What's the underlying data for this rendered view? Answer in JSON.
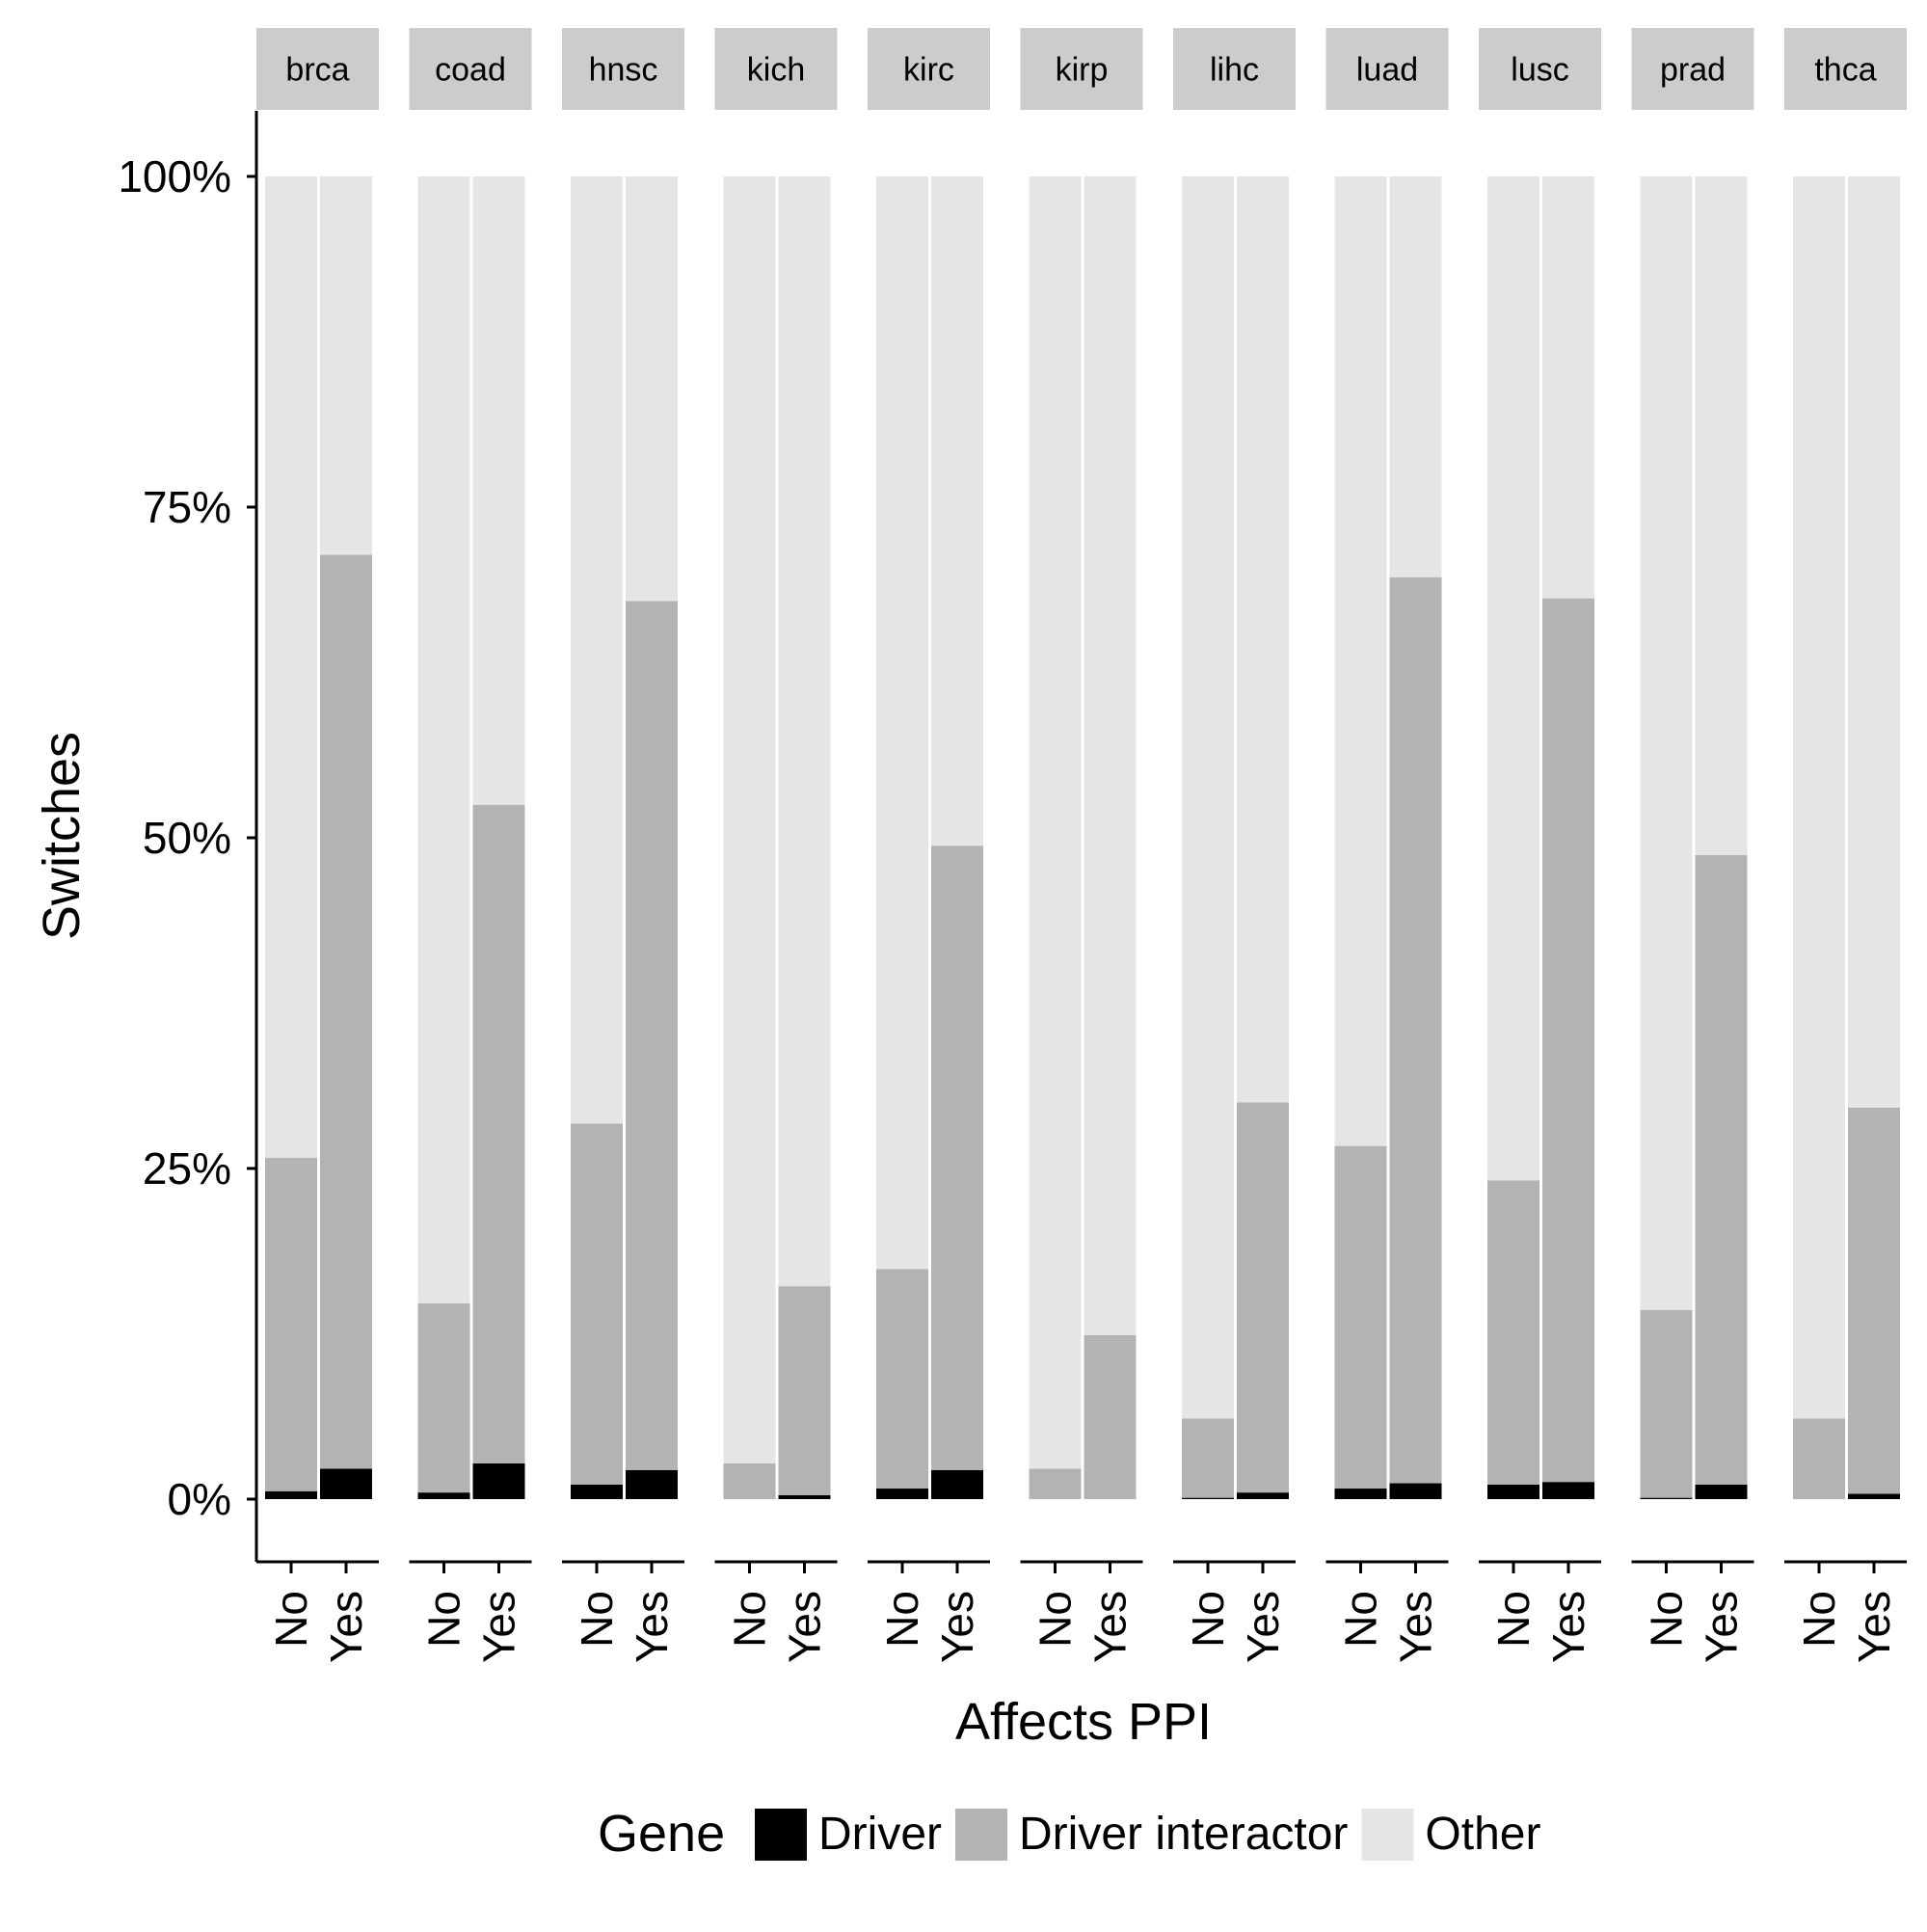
{
  "chart_data": {
    "type": "bar",
    "stacked": true,
    "normalized": true,
    "facets": [
      "brca",
      "coad",
      "hnsc",
      "kich",
      "kirc",
      "kirp",
      "lihc",
      "luad",
      "lusc",
      "prad",
      "thca"
    ],
    "categories": [
      "No",
      "Yes"
    ],
    "xlabel": "Affects PPI",
    "ylabel": "Switches",
    "ylim": [
      0,
      1
    ],
    "yticks": [
      0,
      0.25,
      0.5,
      0.75,
      1.0
    ],
    "ytick_labels": [
      "0%",
      "25%",
      "50%",
      "75%",
      "100%"
    ],
    "series": [
      {
        "name": "Driver",
        "color": "#000000",
        "values": [
          [
            0.006,
            0.023
          ],
          [
            0.005,
            0.027
          ],
          [
            0.011,
            0.022
          ],
          [
            0.0,
            0.003
          ],
          [
            0.008,
            0.022
          ],
          [
            0.0,
            0.0
          ],
          [
            0.001,
            0.005
          ],
          [
            0.008,
            0.012
          ],
          [
            0.011,
            0.013
          ],
          [
            0.001,
            0.011
          ],
          [
            0.0,
            0.004
          ]
        ]
      },
      {
        "name": "Driver interactor",
        "color": "#b3b3b3",
        "values": [
          [
            0.252,
            0.691
          ],
          [
            0.143,
            0.498
          ],
          [
            0.273,
            0.657
          ],
          [
            0.027,
            0.158
          ],
          [
            0.166,
            0.472
          ],
          [
            0.023,
            0.124
          ],
          [
            0.06,
            0.295
          ],
          [
            0.259,
            0.685
          ],
          [
            0.23,
            0.668
          ],
          [
            0.142,
            0.476
          ],
          [
            0.061,
            0.292
          ]
        ]
      },
      {
        "name": "Other",
        "color": "#e5e5e5",
        "values": [
          [
            0.742,
            0.286
          ],
          [
            0.852,
            0.475
          ],
          [
            0.716,
            0.321
          ],
          [
            0.973,
            0.839
          ],
          [
            0.826,
            0.506
          ],
          [
            0.977,
            0.876
          ],
          [
            0.939,
            0.7
          ],
          [
            0.733,
            0.303
          ],
          [
            0.759,
            0.319
          ],
          [
            0.857,
            0.513
          ],
          [
            0.939,
            0.704
          ]
        ]
      }
    ],
    "legend": {
      "title": "Gene",
      "position": "bottom",
      "items": [
        "Driver",
        "Driver interactor",
        "Other"
      ]
    },
    "grid": false,
    "colors": {
      "strip_background": "#cccccc",
      "axis_line": "#000000"
    }
  }
}
